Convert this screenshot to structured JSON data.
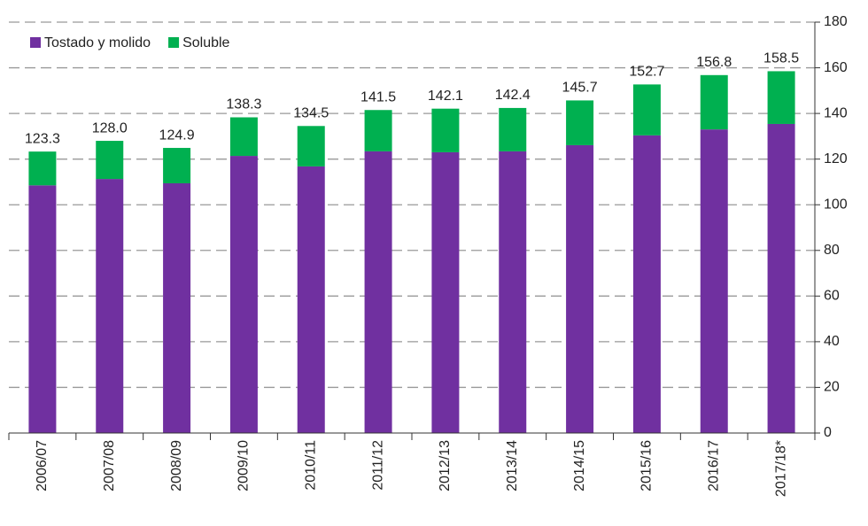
{
  "chart_data": {
    "type": "stacked_bar",
    "categories": [
      "2006/07",
      "2007/08",
      "2008/09",
      "2009/10",
      "2010/11",
      "2011/12",
      "2012/13",
      "2013/14",
      "2014/15",
      "2015/16",
      "2016/17",
      "2017/18*"
    ],
    "series": [
      {
        "name": "Tostado y molido",
        "color": "#7030a0",
        "values": [
          108.5,
          111.3,
          109.4,
          121.4,
          116.8,
          123.4,
          123.0,
          123.4,
          126.1,
          130.4,
          133.0,
          135.4
        ]
      },
      {
        "name": "Soluble",
        "color": "#00b050",
        "values": [
          14.8,
          16.7,
          15.5,
          16.9,
          17.7,
          18.1,
          19.1,
          19.0,
          19.6,
          22.3,
          23.8,
          23.1
        ]
      }
    ],
    "totals": [
      123.3,
      128.0,
      124.9,
      138.3,
      134.5,
      141.5,
      142.1,
      142.4,
      145.7,
      152.7,
      156.8,
      158.5
    ],
    "totals_labels": [
      "123.3",
      "128.0",
      "124.9",
      "138.3",
      "134.5",
      "141.5",
      "142.1",
      "142.4",
      "145.7",
      "152.7",
      "156.8",
      "158.5"
    ],
    "ylim": [
      0,
      180
    ],
    "yticks": [
      0,
      20,
      40,
      60,
      80,
      100,
      120,
      140,
      160,
      180
    ],
    "y_axis_side": "right",
    "grid": true,
    "legend": "top-left"
  }
}
